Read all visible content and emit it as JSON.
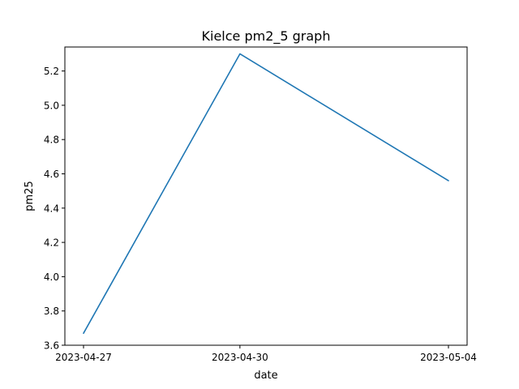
{
  "chart_data": {
    "type": "line",
    "title": "Kielce pm2_5 graph",
    "xlabel": "date",
    "ylabel": "pm25",
    "x": [
      "2023-04-27",
      "2023-04-30",
      "2023-05-04"
    ],
    "series": [
      {
        "values": [
          3.67,
          5.3,
          4.56
        ]
      }
    ],
    "ylim": [
      3.6,
      5.34
    ],
    "yticks": [
      3.6,
      3.8,
      4.0,
      4.2,
      4.4,
      4.6,
      4.8,
      5.0,
      5.2
    ],
    "grid": false,
    "line_color": "#1f77b4"
  }
}
